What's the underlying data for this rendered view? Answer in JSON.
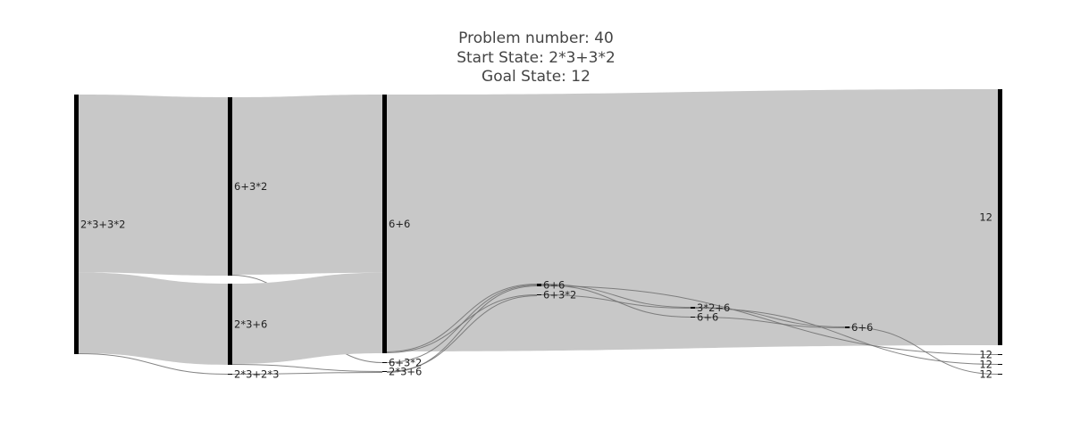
{
  "title": {
    "line1": "Problem number: 40",
    "line2": "Start State: 2*3+3*2",
    "line3": "Goal State: 12"
  },
  "colors": {
    "link": "#c8c8c8",
    "link_stroke": "#707070",
    "node": "#000000",
    "text": "#444444",
    "background": "#ffffff"
  },
  "chart_data": {
    "type": "sankey",
    "nodes": [
      {
        "id": "n0",
        "label": "2*3+3*2",
        "column": 0
      },
      {
        "id": "n1",
        "label": "6+3*2",
        "column": 1
      },
      {
        "id": "n2",
        "label": "2*3+6",
        "column": 1
      },
      {
        "id": "n3",
        "label": "2*3+2*3",
        "column": 1
      },
      {
        "id": "n4",
        "label": "6+6",
        "column": 2
      },
      {
        "id": "n5",
        "label": "6+3*2",
        "column": 2
      },
      {
        "id": "n6",
        "label": "2*3+6",
        "column": 2
      },
      {
        "id": "n7",
        "label": "6+6",
        "column": 3
      },
      {
        "id": "n8",
        "label": "6+3*2",
        "column": 3
      },
      {
        "id": "n9",
        "label": "3*2+6",
        "column": 4
      },
      {
        "id": "n10",
        "label": "6+6",
        "column": 4
      },
      {
        "id": "n11",
        "label": "6+6",
        "column": 5
      },
      {
        "id": "n12",
        "label": "12",
        "column": 6
      },
      {
        "id": "n13",
        "label": "12",
        "column": 6
      },
      {
        "id": "n14",
        "label": "12",
        "column": 6
      },
      {
        "id": "n15",
        "label": "12",
        "column": 6
      }
    ],
    "links": [
      {
        "source": "n0",
        "target": "n1",
        "value": 198
      },
      {
        "source": "n0",
        "target": "n2",
        "value": 90
      },
      {
        "source": "n0",
        "target": "n3",
        "value": 1
      },
      {
        "source": "n1",
        "target": "n4",
        "value": 197
      },
      {
        "source": "n1",
        "target": "n5",
        "value": 1
      },
      {
        "source": "n2",
        "target": "n4",
        "value": 89
      },
      {
        "source": "n2",
        "target": "n6",
        "value": 1
      },
      {
        "source": "n3",
        "target": "n6",
        "value": 1
      },
      {
        "source": "n4",
        "target": "n12",
        "value": 284
      },
      {
        "source": "n4",
        "target": "n7",
        "value": 1
      },
      {
        "source": "n4",
        "target": "n8",
        "value": 1
      },
      {
        "source": "n5",
        "target": "n7",
        "value": 1
      },
      {
        "source": "n6",
        "target": "n8",
        "value": 1
      },
      {
        "source": "n6",
        "target": "n7",
        "value": 1
      },
      {
        "source": "n7",
        "target": "n9",
        "value": 1
      },
      {
        "source": "n7",
        "target": "n10",
        "value": 1
      },
      {
        "source": "n7",
        "target": "n13",
        "value": 1
      },
      {
        "source": "n8",
        "target": "n9",
        "value": 1
      },
      {
        "source": "n9",
        "target": "n11",
        "value": 1
      },
      {
        "source": "n9",
        "target": "n14",
        "value": 1
      },
      {
        "source": "n10",
        "target": "n11",
        "value": 1
      },
      {
        "source": "n11",
        "target": "n15",
        "value": 1
      }
    ]
  }
}
